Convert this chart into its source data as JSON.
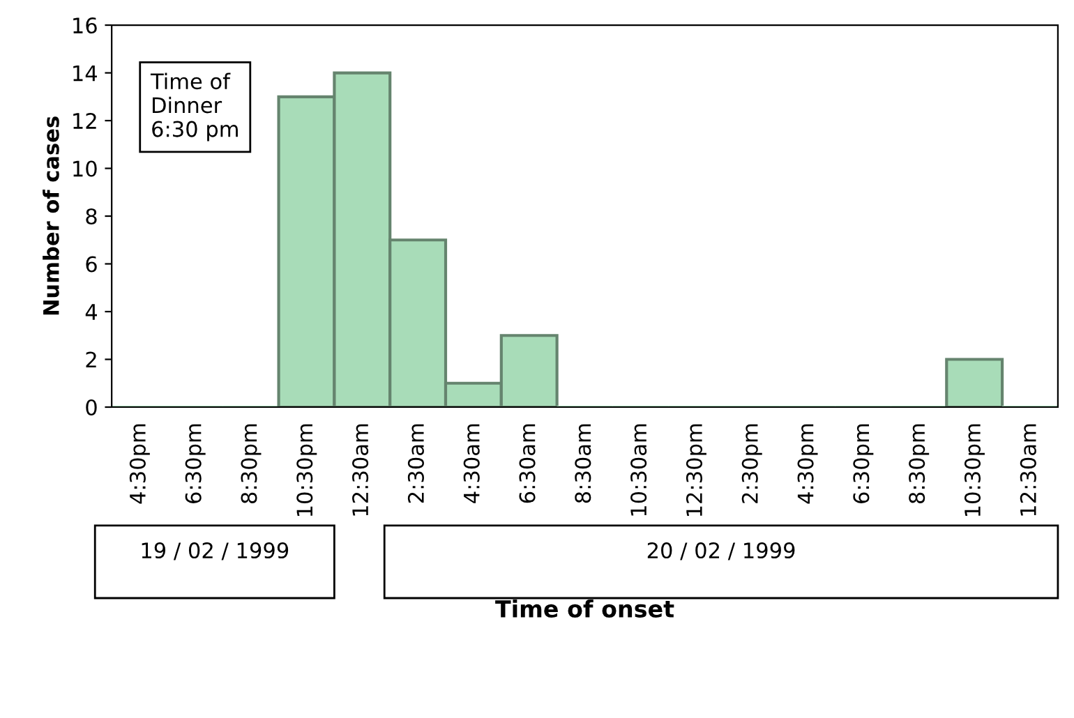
{
  "chart_data": {
    "type": "bar",
    "xlabel": "Time of onset",
    "ylabel": "Number of cases",
    "categories": [
      "4:30pm",
      "6:30pm",
      "8:30pm",
      "10:30pm",
      "12:30am",
      "2:30am",
      "4:30am",
      "6:30am",
      "8:30am",
      "10:30am",
      "12:30pm",
      "2:30pm",
      "4:30pm",
      "6:30pm",
      "8:30pm",
      "10:30pm",
      "12:30am"
    ],
    "values": [
      0,
      0,
      0,
      13,
      14,
      7,
      1,
      3,
      0,
      0,
      0,
      0,
      0,
      0,
      0,
      2,
      0
    ],
    "color": "#a8dcb8",
    "ylim": [
      0,
      16
    ],
    "yticks": [
      0,
      2,
      4,
      6,
      8,
      10,
      12,
      14,
      16
    ],
    "grid": false,
    "annotations": [
      "Time of\nDinner\n6:30 pm",
      "19 / 02 / 1999",
      "20 / 02 / 1999"
    ]
  }
}
